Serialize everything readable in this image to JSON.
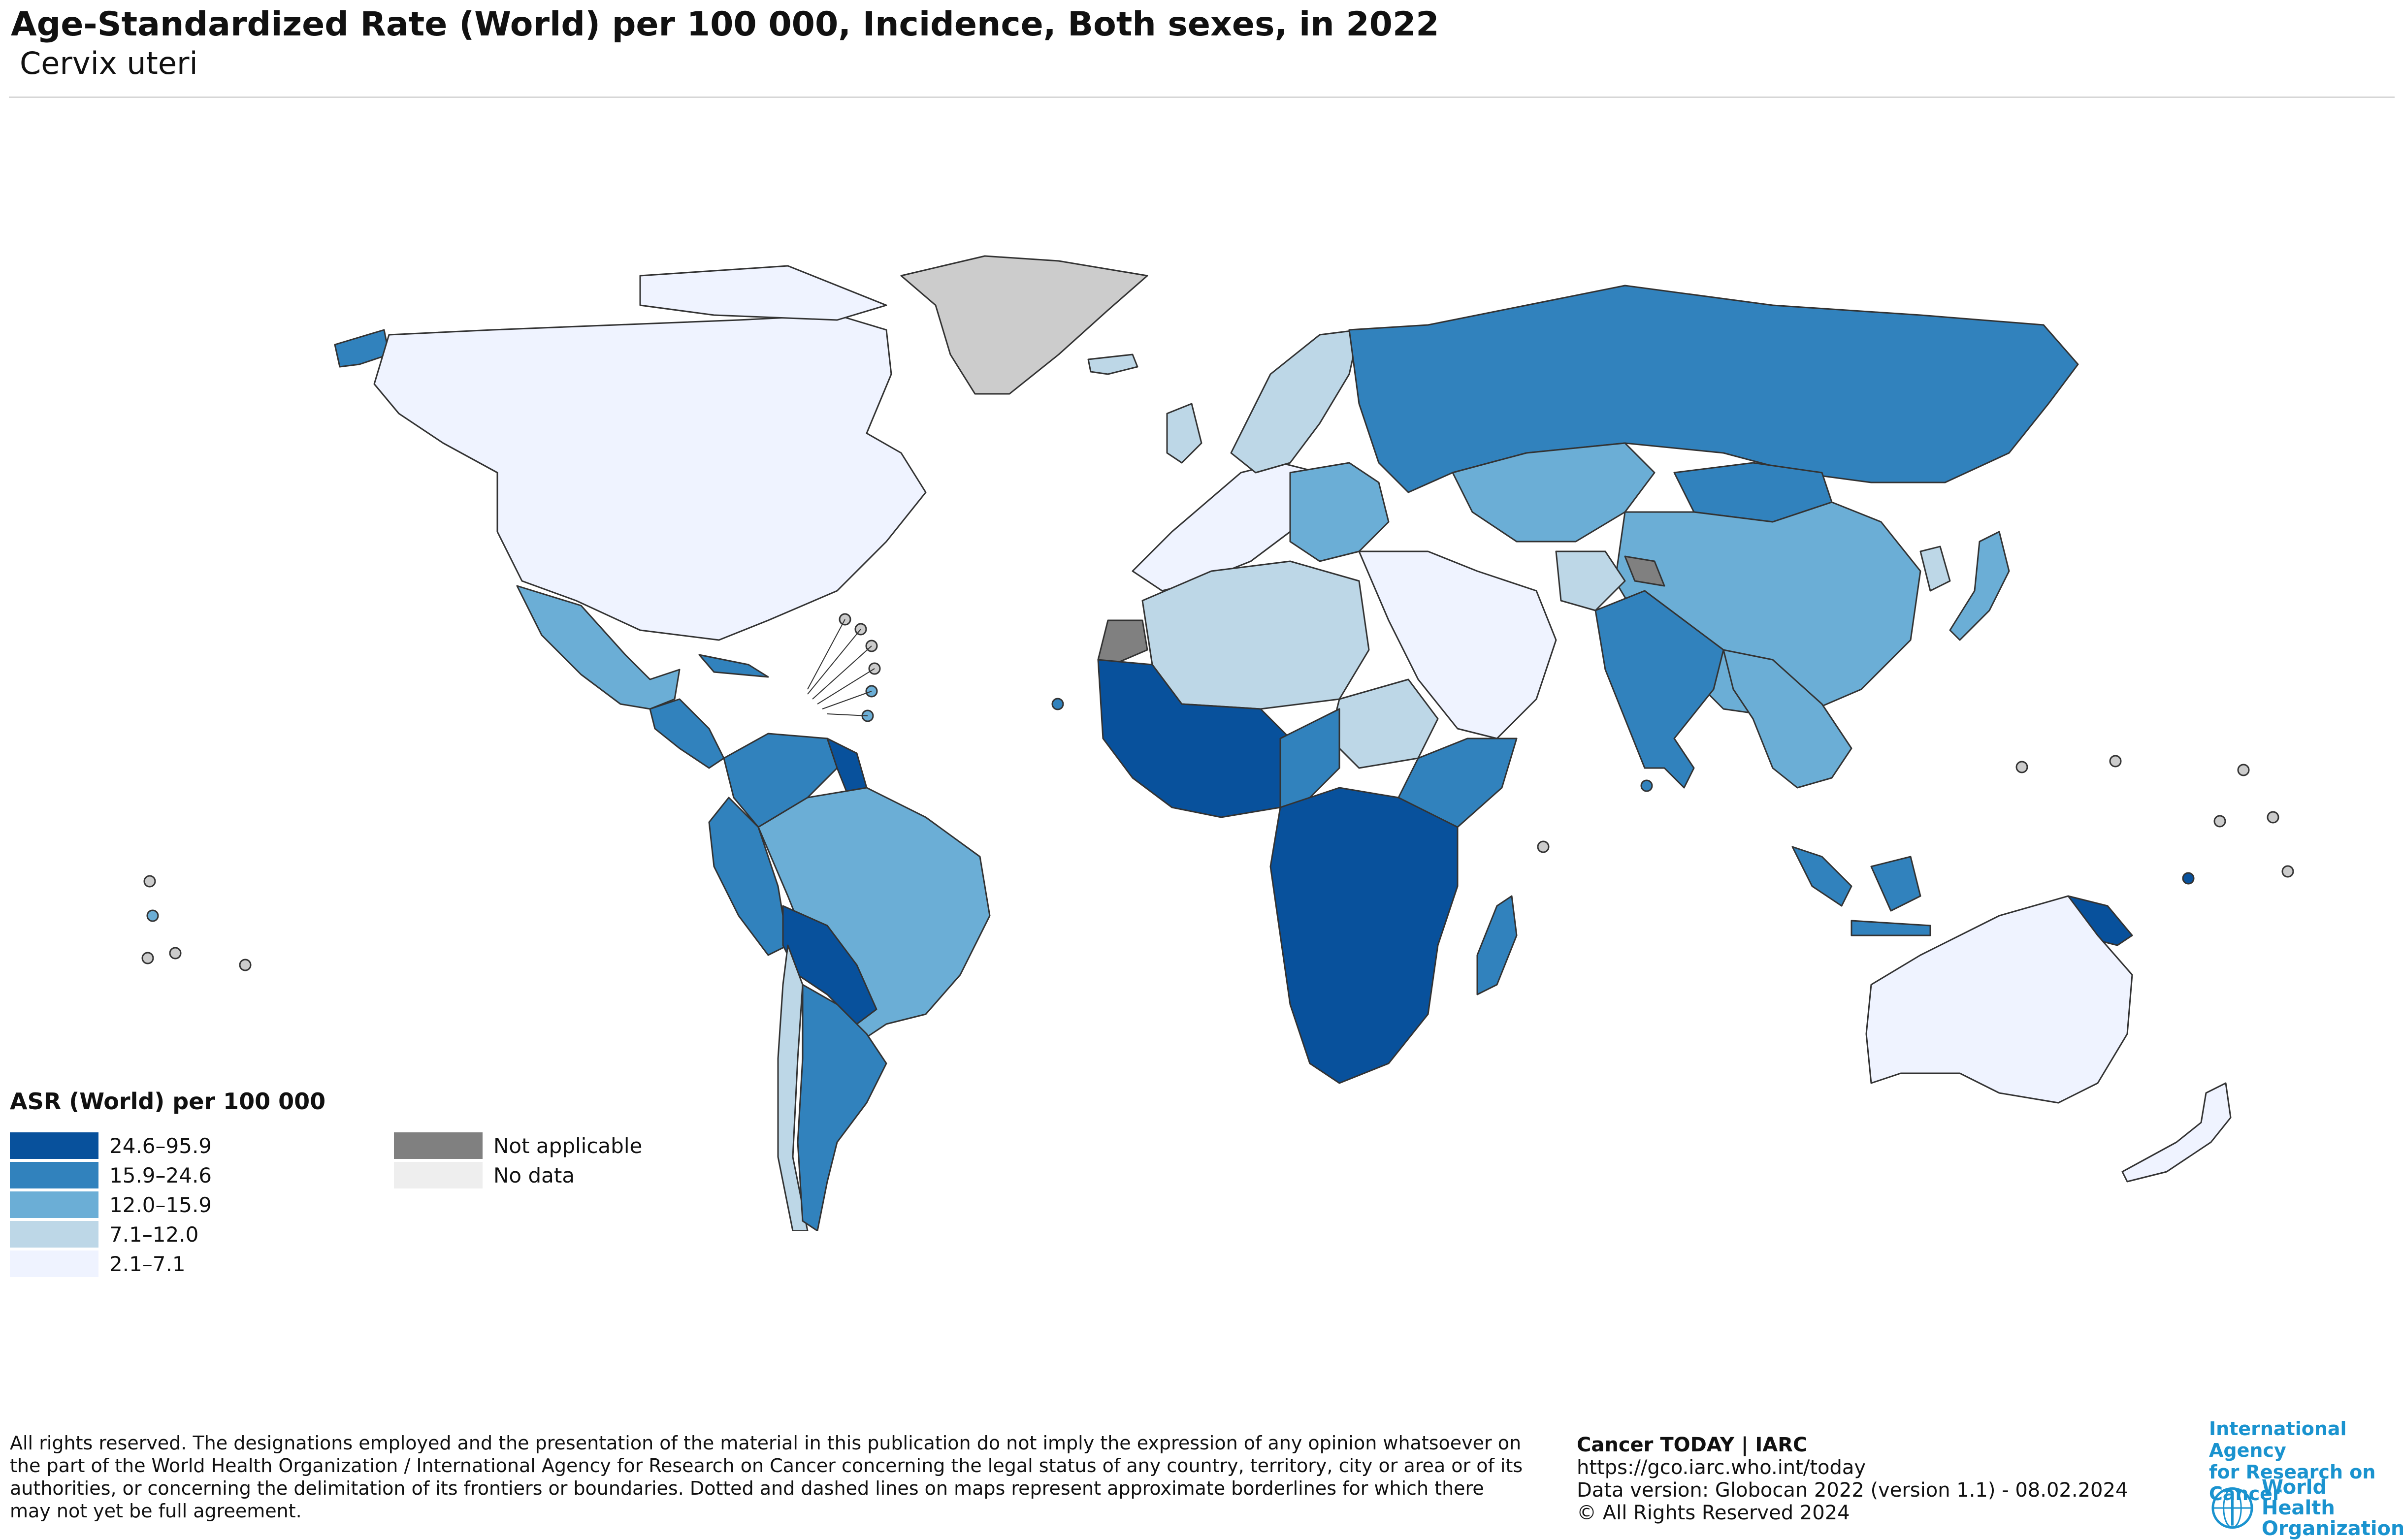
{
  "header": {
    "title": "Age-Standardized Rate (World) per 100 000, Incidence, Both sexes, in 2022",
    "subtitle": "Cervix uteri"
  },
  "legend": {
    "title": "ASR (World) per 100 000",
    "classes": [
      {
        "label": "24.6–95.9",
        "color": "#08519c"
      },
      {
        "label": "15.9–24.6",
        "color": "#3182bd"
      },
      {
        "label": "12.0–15.9",
        "color": "#6baed6"
      },
      {
        "label": "7.1–12.0",
        "color": "#bdd7e7"
      },
      {
        "label": "2.1–7.1",
        "color": "#eff3ff"
      }
    ],
    "special": [
      {
        "label": "Not applicable",
        "color": "#808080"
      },
      {
        "label": "No data",
        "color": "#eeeeee"
      }
    ]
  },
  "footer": {
    "disclaimer": "All rights reserved. The designations employed and the presentation of the material in this publication do not imply the expression of any opinion whatsoever on the part of the World Health Organization / International Agency for Research on Cancer concerning the legal status of any country, territory, city or area or of its authorities, or concerning the delimitation of its frontiers or boundaries. Dotted and dashed lines on maps represent approximate borderlines for which there may not yet be full agreement.",
    "source_title": "Cancer TODAY | IARC",
    "url": "https://gco.iarc.who.int/today",
    "version": "Data version: Globocan 2022 (version 1.1) - 08.02.2024",
    "copyright": "© All Rights Reserved 2024"
  },
  "logos": {
    "iarc_line1": "International Agency",
    "iarc_line2": "for Research on Cancer",
    "who_line1": "World Health",
    "who_line2": "Organization"
  },
  "map_regions": [
    {
      "region": "Canada & USA",
      "class": "2.1–7.1"
    },
    {
      "region": "Greenland",
      "class": "No data"
    },
    {
      "region": "Alaska",
      "class": "15.9–24.6"
    },
    {
      "region": "Mexico",
      "class": "12.0–15.9"
    },
    {
      "region": "Central America",
      "class": "15.9–24.6"
    },
    {
      "region": "Guyana",
      "class": "24.6–95.9"
    },
    {
      "region": "Colombia & Venezuela",
      "class": "15.9–24.6"
    },
    {
      "region": "Brazil",
      "class": "12.0–15.9"
    },
    {
      "region": "Peru & Ecuador",
      "class": "15.9–24.6"
    },
    {
      "region": "Bolivia & Paraguay",
      "class": "24.6–95.9"
    },
    {
      "region": "Chile",
      "class": "7.1–12.0"
    },
    {
      "region": "Argentina",
      "class": "15.9–24.6"
    },
    {
      "region": "Western Europe",
      "class": "2.1–7.1"
    },
    {
      "region": "Eastern Europe",
      "class": "7.1–12.0"
    },
    {
      "region": "Russia",
      "class": "15.9–24.6"
    },
    {
      "region": "Kazakhstan",
      "class": "12.0–15.9"
    },
    {
      "region": "China",
      "class": "12.0–15.9"
    },
    {
      "region": "Mongolia",
      "class": "15.9–24.6"
    },
    {
      "region": "India",
      "class": "15.9–24.6"
    },
    {
      "region": "Middle East",
      "class": "2.1–7.1"
    },
    {
      "region": "North Africa",
      "class": "7.1–12.0"
    },
    {
      "region": "Western Sahara",
      "class": "Not applicable"
    },
    {
      "region": "Sudan",
      "class": "7.1–12.0"
    },
    {
      "region": "West Africa",
      "class": "24.6–95.9"
    },
    {
      "region": "Central Africa",
      "class": "15.9–24.6"
    },
    {
      "region": "Horn of Africa",
      "class": "15.9–24.6"
    },
    {
      "region": "East & Southern Africa",
      "class": "24.6–95.9"
    },
    {
      "region": "Madagascar",
      "class": "15.9–24.6"
    },
    {
      "region": "Southeast Asia",
      "class": "12.0–15.9"
    },
    {
      "region": "Indonesia",
      "class": "15.9–24.6"
    },
    {
      "region": "Papua New Guinea",
      "class": "24.6–95.9"
    },
    {
      "region": "Japan",
      "class": "12.0–15.9"
    },
    {
      "region": "Australia",
      "class": "2.1–7.1"
    },
    {
      "region": "New Zealand",
      "class": "2.1–7.1"
    }
  ]
}
